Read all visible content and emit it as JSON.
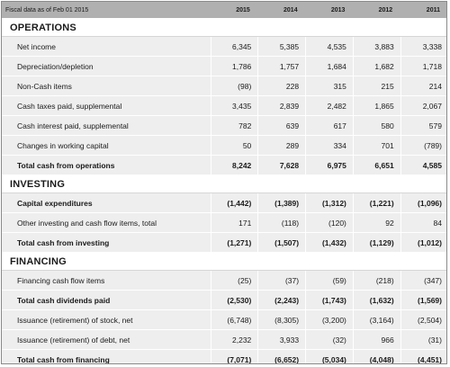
{
  "header": {
    "label": "Fiscal data as of Feb 01 2015",
    "years": [
      "2015",
      "2014",
      "2013",
      "2012",
      "2011"
    ]
  },
  "sections": [
    {
      "title": "OPERATIONS",
      "rows": [
        {
          "label": "Net income",
          "values": [
            "6,345",
            "5,385",
            "4,535",
            "3,883",
            "3,338"
          ],
          "bold": false
        },
        {
          "label": "Depreciation/depletion",
          "values": [
            "1,786",
            "1,757",
            "1,684",
            "1,682",
            "1,718"
          ],
          "bold": false
        },
        {
          "label": "Non-Cash items",
          "values": [
            "(98)",
            "228",
            "315",
            "215",
            "214"
          ],
          "bold": false
        },
        {
          "label": "Cash taxes paid, supplemental",
          "values": [
            "3,435",
            "2,839",
            "2,482",
            "1,865",
            "2,067"
          ],
          "bold": false
        },
        {
          "label": "Cash interest paid, supplemental",
          "values": [
            "782",
            "639",
            "617",
            "580",
            "579"
          ],
          "bold": false
        },
        {
          "label": "Changes in working capital",
          "values": [
            "50",
            "289",
            "334",
            "701",
            "(789)"
          ],
          "bold": false
        },
        {
          "label": "Total cash from operations",
          "values": [
            "8,242",
            "7,628",
            "6,975",
            "6,651",
            "4,585"
          ],
          "bold": true
        }
      ]
    },
    {
      "title": "INVESTING",
      "rows": [
        {
          "label": "Capital expenditures",
          "values": [
            "(1,442)",
            "(1,389)",
            "(1,312)",
            "(1,221)",
            "(1,096)"
          ],
          "bold": true
        },
        {
          "label": "Other investing and cash flow items, total",
          "values": [
            "171",
            "(118)",
            "(120)",
            "92",
            "84"
          ],
          "bold": false
        },
        {
          "label": "Total cash from investing",
          "values": [
            "(1,271)",
            "(1,507)",
            "(1,432)",
            "(1,129)",
            "(1,012)"
          ],
          "bold": true
        }
      ]
    },
    {
      "title": "FINANCING",
      "rows": [
        {
          "label": "Financing cash flow items",
          "values": [
            "(25)",
            "(37)",
            "(59)",
            "(218)",
            "(347)"
          ],
          "bold": false
        },
        {
          "label": "Total cash dividends paid",
          "values": [
            "(2,530)",
            "(2,243)",
            "(1,743)",
            "(1,632)",
            "(1,569)"
          ],
          "bold": true
        },
        {
          "label": "Issuance (retirement) of stock, net",
          "values": [
            "(6,748)",
            "(8,305)",
            "(3,200)",
            "(3,164)",
            "(2,504)"
          ],
          "bold": false
        },
        {
          "label": "Issuance (retirement) of debt, net",
          "values": [
            "2,232",
            "3,933",
            "(32)",
            "966",
            "(31)"
          ],
          "bold": false
        },
        {
          "label": "Total cash from financing",
          "values": [
            "(7,071)",
            "(6,652)",
            "(5,034)",
            "(4,048)",
            "(4,451)"
          ],
          "bold": true
        }
      ]
    }
  ]
}
